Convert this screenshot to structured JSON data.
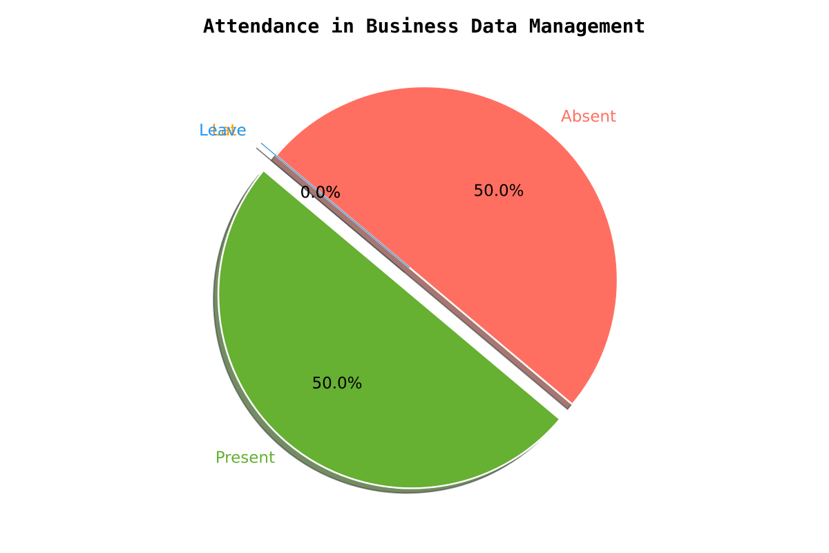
{
  "chart_data": {
    "type": "pie",
    "title": "Attendance in Business Data Management",
    "categories": [
      "Present",
      "Absent",
      "Late",
      "Leave"
    ],
    "values": [
      50,
      50,
      0,
      0
    ],
    "percent_labels": [
      "50.0%",
      "50.0%",
      "0.0%",
      "0.0%"
    ],
    "colors": [
      "#66b032",
      "#ff6f61",
      "#ff9800",
      "#2196f3"
    ],
    "start_angle_deg": 140,
    "direction": "counterclockwise",
    "explode": [
      0.1,
      0,
      0.1,
      0.1
    ],
    "shadow": true,
    "legend": "none"
  }
}
